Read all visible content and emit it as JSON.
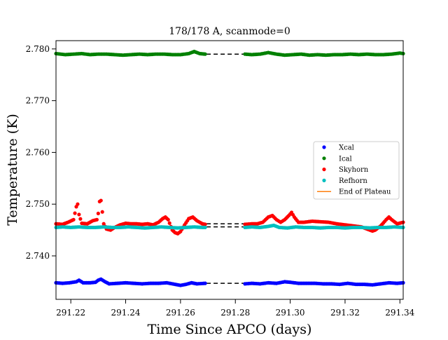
{
  "chart_data": {
    "type": "scatter",
    "title": "178/178 A, scanmode=0",
    "xlabel": "Time Since APCO (days)",
    "ylabel": "Temperature (K)",
    "xlim": [
      291.2146,
      291.3412
    ],
    "ylim": [
      2.7316,
      2.7816
    ],
    "xticks": [
      "291.22",
      "291.24",
      "291.26",
      "291.28",
      "291.30",
      "291.32",
      "291.34"
    ],
    "xtick_values": [
      291.22,
      291.24,
      291.26,
      291.28,
      291.3,
      291.32,
      291.34
    ],
    "yticks": [
      "2.740",
      "2.750",
      "2.760",
      "2.770",
      "2.780"
    ],
    "ytick_values": [
      2.74,
      2.75,
      2.76,
      2.77,
      2.78
    ],
    "grid": false,
    "legend_position": "center-right",
    "data_gap": [
      291.2695,
      291.2835
    ],
    "series": [
      {
        "name": "Xcal",
        "color": "#0000ff",
        "kind": "points",
        "points": [
          [
            291.2146,
            2.7348
          ],
          [
            291.217,
            2.7347
          ],
          [
            291.2195,
            2.7348
          ],
          [
            291.222,
            2.735
          ],
          [
            291.223,
            2.7353
          ],
          [
            291.2245,
            2.7348
          ],
          [
            291.227,
            2.7348
          ],
          [
            291.229,
            2.7349
          ],
          [
            291.23,
            2.7353
          ],
          [
            291.231,
            2.7355
          ],
          [
            291.2325,
            2.735
          ],
          [
            291.234,
            2.7346
          ],
          [
            291.237,
            2.7347
          ],
          [
            291.24,
            2.7348
          ],
          [
            291.243,
            2.7347
          ],
          [
            291.246,
            2.7346
          ],
          [
            291.249,
            2.7347
          ],
          [
            291.252,
            2.7347
          ],
          [
            291.255,
            2.7348
          ],
          [
            291.258,
            2.7345
          ],
          [
            291.26,
            2.7343
          ],
          [
            291.262,
            2.7345
          ],
          [
            291.264,
            2.7348
          ],
          [
            291.266,
            2.7346
          ],
          [
            291.269,
            2.7347
          ],
          [
            291.2835,
            2.7346
          ],
          [
            291.286,
            2.7347
          ],
          [
            291.289,
            2.7346
          ],
          [
            291.292,
            2.7348
          ],
          [
            291.295,
            2.7347
          ],
          [
            291.298,
            2.735
          ],
          [
            291.3,
            2.7349
          ],
          [
            291.303,
            2.7347
          ],
          [
            291.306,
            2.7347
          ],
          [
            291.309,
            2.7347
          ],
          [
            291.312,
            2.7346
          ],
          [
            291.315,
            2.7346
          ],
          [
            291.318,
            2.7345
          ],
          [
            291.321,
            2.7347
          ],
          [
            291.324,
            2.7345
          ],
          [
            291.327,
            2.7345
          ],
          [
            291.33,
            2.7344
          ],
          [
            291.333,
            2.7346
          ],
          [
            291.336,
            2.7348
          ],
          [
            291.339,
            2.7347
          ],
          [
            291.3412,
            2.7348
          ]
        ]
      },
      {
        "name": "Ical",
        "color": "#008000",
        "kind": "points",
        "points": [
          [
            291.2146,
            2.7791
          ],
          [
            291.218,
            2.7789
          ],
          [
            291.221,
            2.779
          ],
          [
            291.224,
            2.7791
          ],
          [
            291.227,
            2.7789
          ],
          [
            291.23,
            2.779
          ],
          [
            291.233,
            2.779
          ],
          [
            291.236,
            2.7789
          ],
          [
            291.239,
            2.7788
          ],
          [
            291.242,
            2.7789
          ],
          [
            291.245,
            2.779
          ],
          [
            291.248,
            2.7789
          ],
          [
            291.251,
            2.779
          ],
          [
            291.254,
            2.779
          ],
          [
            291.257,
            2.7789
          ],
          [
            291.26,
            2.7789
          ],
          [
            291.263,
            2.7791
          ],
          [
            291.265,
            2.7795
          ],
          [
            291.267,
            2.7791
          ],
          [
            291.269,
            2.779
          ],
          [
            291.2835,
            2.779
          ],
          [
            291.286,
            2.7789
          ],
          [
            291.289,
            2.779
          ],
          [
            291.292,
            2.7793
          ],
          [
            291.295,
            2.779
          ],
          [
            291.298,
            2.7788
          ],
          [
            291.301,
            2.7789
          ],
          [
            291.304,
            2.779
          ],
          [
            291.307,
            2.7788
          ],
          [
            291.31,
            2.7789
          ],
          [
            291.313,
            2.7788
          ],
          [
            291.316,
            2.7789
          ],
          [
            291.319,
            2.7789
          ],
          [
            291.322,
            2.779
          ],
          [
            291.325,
            2.7789
          ],
          [
            291.328,
            2.779
          ],
          [
            291.331,
            2.7789
          ],
          [
            291.334,
            2.7789
          ],
          [
            291.337,
            2.779
          ],
          [
            291.34,
            2.7792
          ],
          [
            291.3412,
            2.7791
          ]
        ]
      },
      {
        "name": "Skyhorn",
        "color": "#ff0000",
        "kind": "points",
        "points": [
          [
            291.2146,
            2.7462
          ],
          [
            291.217,
            2.7461
          ],
          [
            291.219,
            2.7465
          ],
          [
            291.221,
            2.747
          ],
          [
            291.222,
            2.7495
          ],
          [
            291.2225,
            2.75
          ],
          [
            291.223,
            2.748
          ],
          [
            291.224,
            2.7463
          ],
          [
            291.226,
            2.7462
          ],
          [
            291.228,
            2.7468
          ],
          [
            291.2295,
            2.747
          ],
          [
            291.23,
            2.7482
          ],
          [
            291.2305,
            2.7505
          ],
          [
            291.231,
            2.7507
          ],
          [
            291.2315,
            2.7485
          ],
          [
            291.232,
            2.7462
          ],
          [
            291.233,
            2.7452
          ],
          [
            291.2345,
            2.745
          ],
          [
            291.236,
            2.7455
          ],
          [
            291.238,
            2.746
          ],
          [
            291.24,
            2.7463
          ],
          [
            291.242,
            2.7462
          ],
          [
            291.244,
            2.7462
          ],
          [
            291.246,
            2.7461
          ],
          [
            291.248,
            2.7462
          ],
          [
            291.25,
            2.746
          ],
          [
            291.252,
            2.7465
          ],
          [
            291.2535,
            2.7472
          ],
          [
            291.2545,
            2.7475
          ],
          [
            291.2555,
            2.747
          ],
          [
            291.257,
            2.745
          ],
          [
            291.258,
            2.7445
          ],
          [
            291.259,
            2.7443
          ],
          [
            291.26,
            2.7447
          ],
          [
            291.2615,
            2.746
          ],
          [
            291.263,
            2.7472
          ],
          [
            291.2645,
            2.7475
          ],
          [
            291.266,
            2.7468
          ],
          [
            291.268,
            2.7462
          ],
          [
            291.269,
            2.7461
          ],
          [
            291.2835,
            2.7461
          ],
          [
            291.286,
            2.7462
          ],
          [
            291.288,
            2.7462
          ],
          [
            291.29,
            2.7465
          ],
          [
            291.292,
            2.7475
          ],
          [
            291.2935,
            2.7478
          ],
          [
            291.295,
            2.747
          ],
          [
            291.2965,
            2.7465
          ],
          [
            291.298,
            2.747
          ],
          [
            291.2995,
            2.7478
          ],
          [
            291.3005,
            2.7484
          ],
          [
            291.3015,
            2.7475
          ],
          [
            291.303,
            2.7465
          ],
          [
            291.305,
            2.7465
          ],
          [
            291.308,
            2.7467
          ],
          [
            291.311,
            2.7466
          ],
          [
            291.314,
            2.7465
          ],
          [
            291.317,
            2.7462
          ],
          [
            291.32,
            2.746
          ],
          [
            291.323,
            2.7458
          ],
          [
            291.326,
            2.7456
          ],
          [
            291.328,
            2.7452
          ],
          [
            291.33,
            2.7448
          ],
          [
            291.331,
            2.745
          ],
          [
            291.333,
            2.7458
          ],
          [
            291.335,
            2.747
          ],
          [
            291.336,
            2.7475
          ],
          [
            291.337,
            2.747
          ],
          [
            291.339,
            2.7462
          ],
          [
            291.3412,
            2.7465
          ]
        ]
      },
      {
        "name": "Refhorn",
        "color": "#00bfbf",
        "kind": "points",
        "points": [
          [
            291.2146,
            2.7455
          ],
          [
            291.217,
            2.7456
          ],
          [
            291.22,
            2.7455
          ],
          [
            291.223,
            2.7456
          ],
          [
            291.226,
            2.7455
          ],
          [
            291.229,
            2.7455
          ],
          [
            291.232,
            2.7456
          ],
          [
            291.235,
            2.7455
          ],
          [
            291.238,
            2.7455
          ],
          [
            291.241,
            2.7456
          ],
          [
            291.244,
            2.7455
          ],
          [
            291.247,
            2.7454
          ],
          [
            291.25,
            2.7455
          ],
          [
            291.253,
            2.7456
          ],
          [
            291.256,
            2.7455
          ],
          [
            291.259,
            2.7454
          ],
          [
            291.262,
            2.7455
          ],
          [
            291.265,
            2.7456
          ],
          [
            291.268,
            2.7455
          ],
          [
            291.269,
            2.7455
          ],
          [
            291.2835,
            2.7455
          ],
          [
            291.286,
            2.7456
          ],
          [
            291.289,
            2.7455
          ],
          [
            291.292,
            2.7457
          ],
          [
            291.294,
            2.7459
          ],
          [
            291.296,
            2.7455
          ],
          [
            291.299,
            2.7454
          ],
          [
            291.302,
            2.7456
          ],
          [
            291.305,
            2.7455
          ],
          [
            291.308,
            2.7455
          ],
          [
            291.311,
            2.7454
          ],
          [
            291.314,
            2.7455
          ],
          [
            291.317,
            2.7455
          ],
          [
            291.32,
            2.7454
          ],
          [
            291.323,
            2.7455
          ],
          [
            291.326,
            2.7455
          ],
          [
            291.329,
            2.7454
          ],
          [
            291.332,
            2.7455
          ],
          [
            291.335,
            2.7455
          ],
          [
            291.338,
            2.7456
          ],
          [
            291.3412,
            2.7455
          ]
        ]
      },
      {
        "name": "End of Plateau",
        "color": "#ff7f0e",
        "kind": "line",
        "points": []
      }
    ],
    "reference_lines": [
      {
        "color": "#000000",
        "style": "dashed",
        "y": 2.779,
        "x": [
          291.2695,
          291.2835
        ]
      },
      {
        "color": "#000000",
        "style": "dashed",
        "y": 2.7462,
        "x": [
          291.2695,
          291.2835
        ]
      },
      {
        "color": "#000000",
        "style": "dashed",
        "y": 2.7456,
        "x": [
          291.2695,
          291.2835
        ]
      },
      {
        "color": "#000000",
        "style": "dashed",
        "y": 2.7347,
        "x": [
          291.2695,
          291.2835
        ]
      }
    ]
  }
}
